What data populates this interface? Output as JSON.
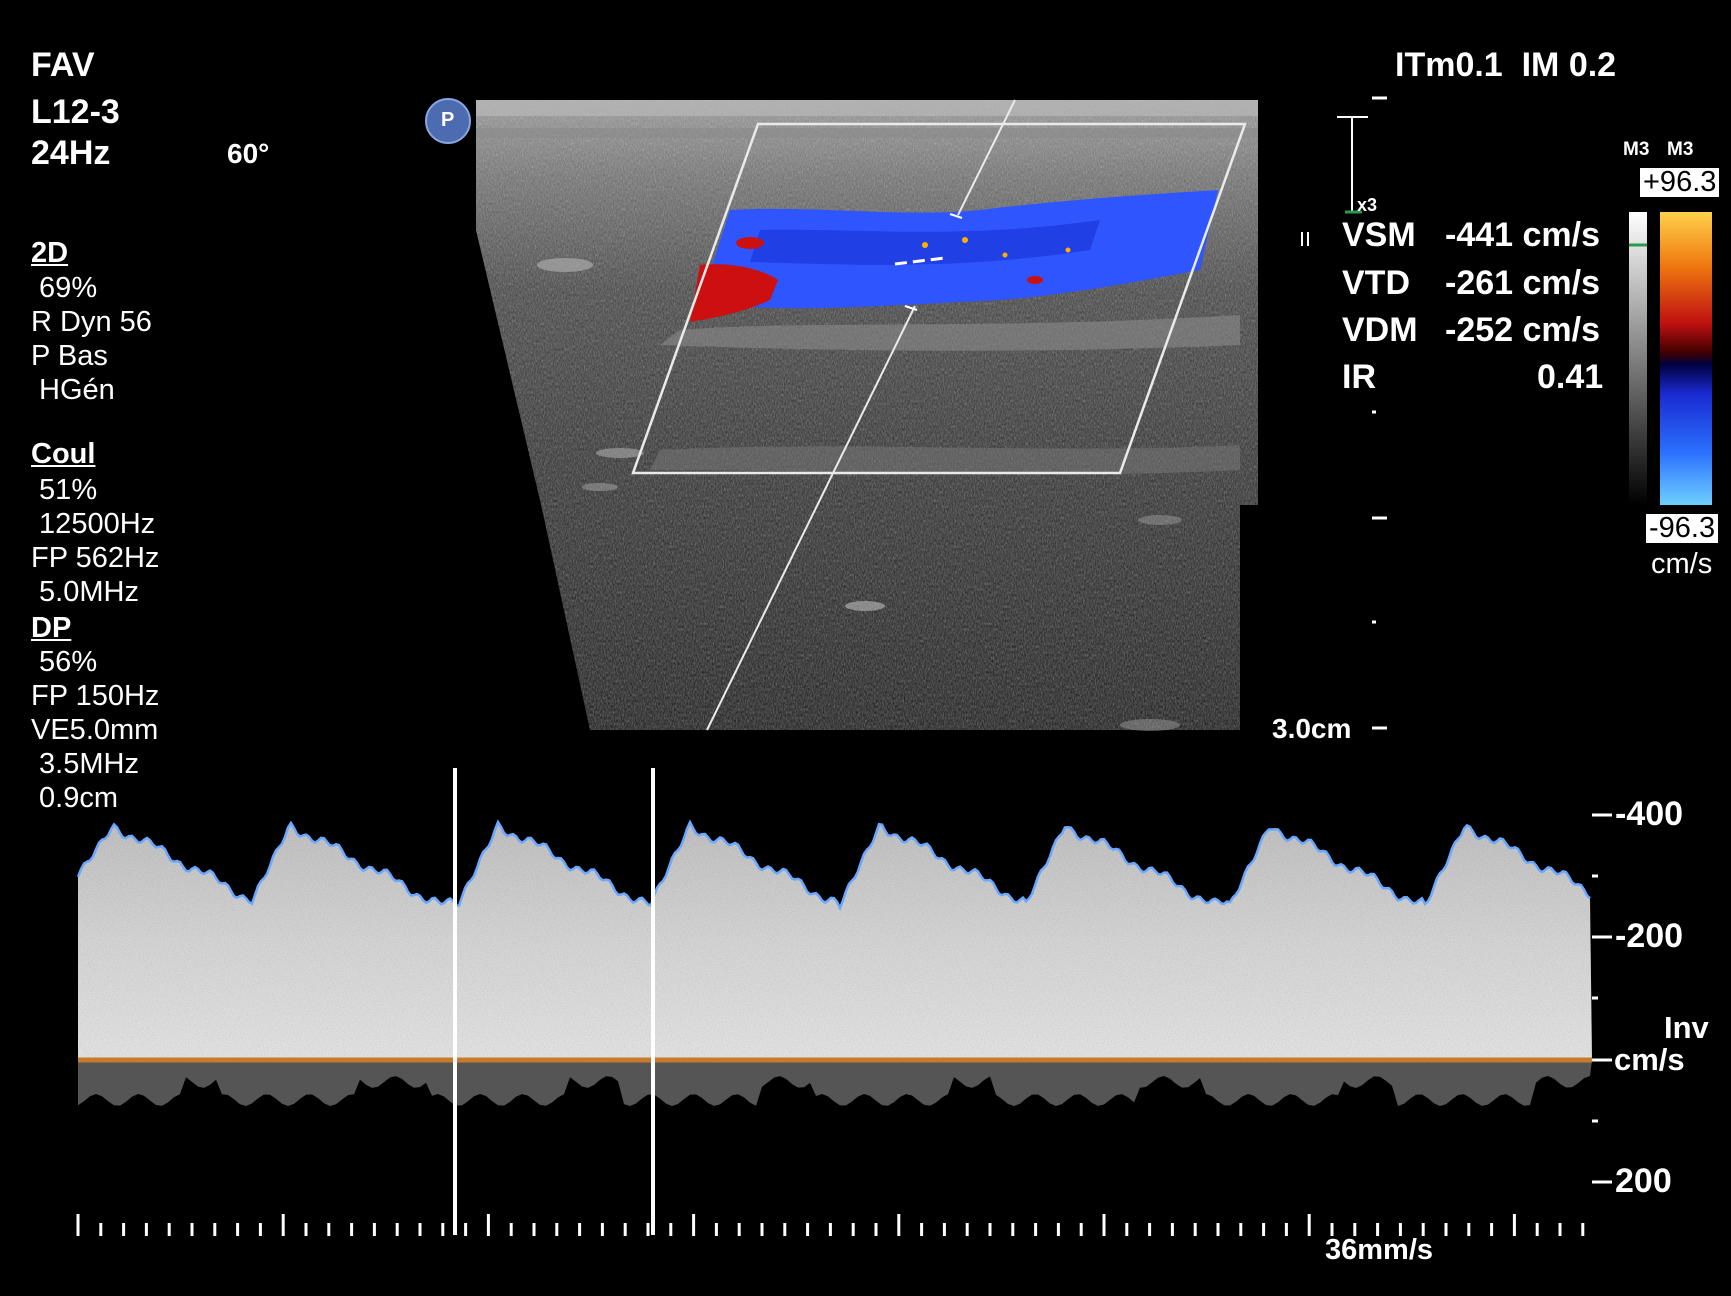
{
  "top_left": {
    "exam": "FAV",
    "probe": "L12-3",
    "frame_rate": "24Hz",
    "angle": "60°"
  },
  "top_right": {
    "indices": "ITm0.1  IM 0.2"
  },
  "params_2d": {
    "title": "2D",
    "gain": " 69%",
    "dyn": "R Dyn 56",
    "persist": "P Bas",
    "freq": " HGén"
  },
  "params_color": {
    "title": "Coul",
    "gain": " 51%",
    "prf": " 12500Hz",
    "filter": "FP 562Hz",
    "freq": " 5.0MHz"
  },
  "params_pw": {
    "title": "DP",
    "gain": " 56%",
    "filter": "FP 150Hz",
    "gate": "VE5.0mm",
    "freq": " 3.5MHz",
    "depth": " 0.9cm"
  },
  "probe_marker": "P",
  "depth_label": "3.0cm",
  "zoom_marker": "x3",
  "color_map": {
    "label_left": "M3",
    "label_right": "M3",
    "max": "+96.3",
    "min": "-96.3",
    "unit": "cm/s"
  },
  "measurements": [
    {
      "name": "VSM",
      "value": "-441 cm/s"
    },
    {
      "name": "VTD",
      "value": "-261 cm/s"
    },
    {
      "name": "VDM",
      "value": "-252 cm/s"
    },
    {
      "name": "IR",
      "value": "0.41"
    }
  ],
  "doppler_scale": {
    "top": "-400",
    "mid": "-200",
    "inv": "Inv",
    "unit": "cm/s",
    "bottom": "200"
  },
  "sweep_speed": "36mm/s",
  "colors": {
    "flow_blue": "#2f55ff",
    "flow_red": "#cc1010",
    "baseline": "#c77a2a",
    "envelope": "#6aa7ff"
  }
}
